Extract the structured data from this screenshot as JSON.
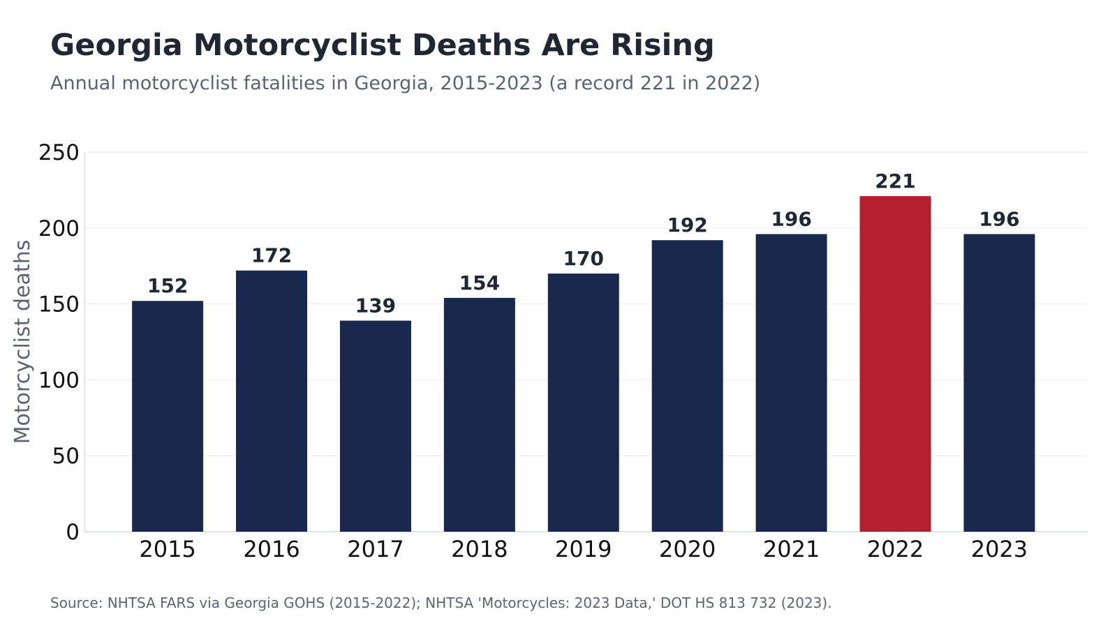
{
  "header": {
    "title": "Georgia Motorcyclist Deaths Are Rising",
    "subtitle": "Annual motorcyclist fatalities in Georgia, 2015-2023 (a record 221 in 2022)"
  },
  "footer": {
    "source": "Source: NHTSA FARS via Georgia GOHS (2015-2022); NHTSA 'Motorcycles: 2023 Data,' DOT HS 813 732 (2023)."
  },
  "colors": {
    "bar": "#18294d",
    "highlight": "#b41f2e",
    "grid": "#ebeef2",
    "axis": "#cfd4da",
    "tick_text": "#111111",
    "label_text": "#1f2733",
    "ylabel_text": "#5b6472"
  },
  "chart_data": {
    "type": "bar",
    "title": "Georgia Motorcyclist Deaths Are Rising",
    "subtitle": "Annual motorcyclist fatalities in Georgia, 2015-2023 (a record 221 in 2022)",
    "xlabel": "",
    "ylabel": "Motorcyclist deaths",
    "categories": [
      "2015",
      "2016",
      "2017",
      "2018",
      "2019",
      "2020",
      "2021",
      "2022",
      "2023"
    ],
    "values": [
      152,
      172,
      139,
      154,
      170,
      192,
      196,
      221,
      196
    ],
    "data_labels": [
      "152",
      "172",
      "139",
      "154",
      "170",
      "192",
      "196",
      "221",
      "196"
    ],
    "highlight_category": "2022",
    "ylim": [
      0,
      250
    ],
    "yticks": [
      0,
      50,
      100,
      150,
      200,
      250
    ],
    "ytick_labels": [
      "0",
      "50",
      "100",
      "150",
      "200",
      "250"
    ],
    "grid": true,
    "legend": "none"
  }
}
